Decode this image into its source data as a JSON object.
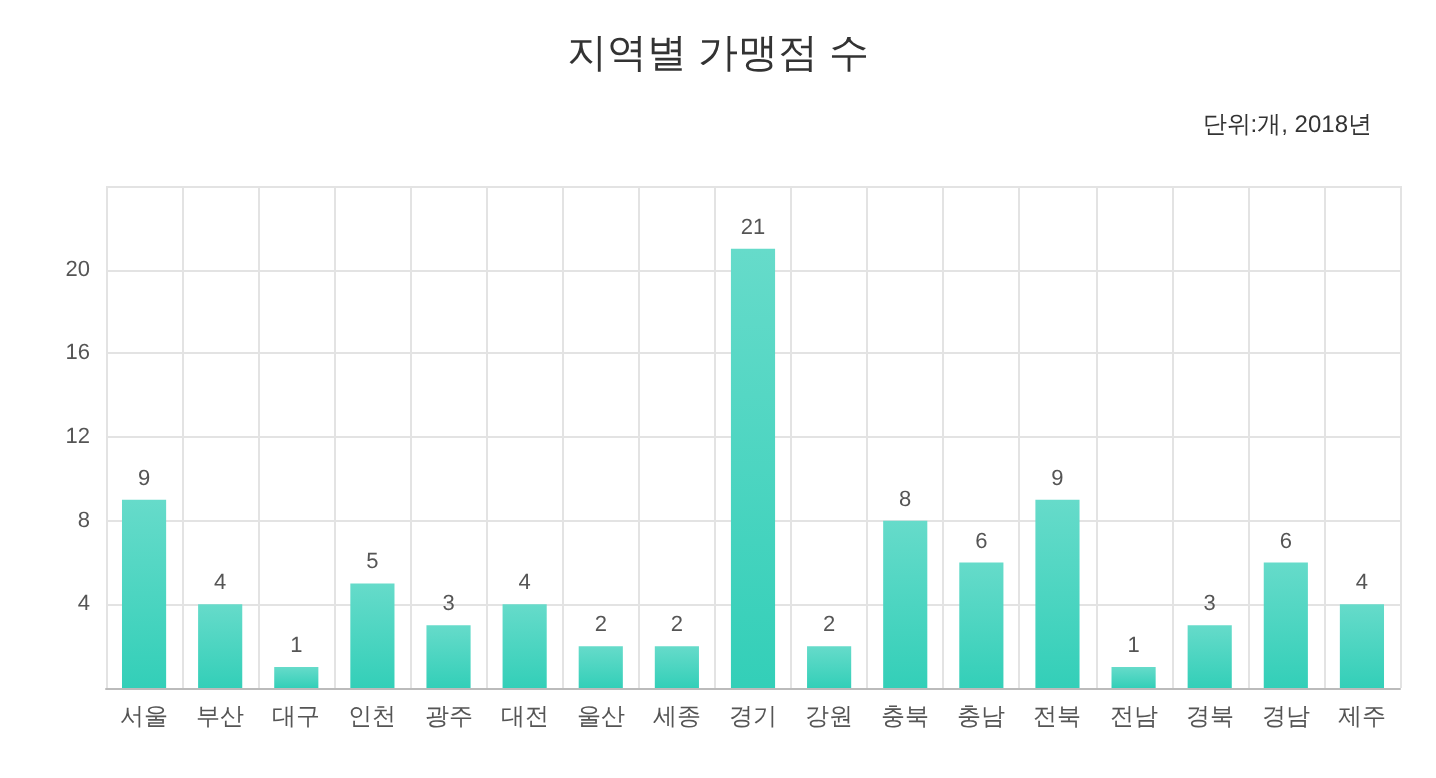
{
  "chart_data": {
    "type": "bar",
    "title": "지역별 가맹점 수",
    "annotations": [
      "단위:개, 2018년"
    ],
    "categories": [
      "서울",
      "부산",
      "대구",
      "인천",
      "광주",
      "대전",
      "울산",
      "세종",
      "경기",
      "강원",
      "충북",
      "충남",
      "전북",
      "전남",
      "경북",
      "경남",
      "제주"
    ],
    "values": [
      9,
      4,
      1,
      5,
      3,
      4,
      2,
      2,
      21,
      2,
      8,
      6,
      9,
      1,
      3,
      6,
      4
    ],
    "color": "#33cfb8",
    "ylim": [
      0,
      24
    ],
    "yticks": [
      {
        "value": 0,
        "label": null
      },
      4,
      8,
      12,
      16,
      20,
      {
        "value": 24,
        "label": null
      }
    ],
    "grid": true,
    "data_labels": true
  }
}
